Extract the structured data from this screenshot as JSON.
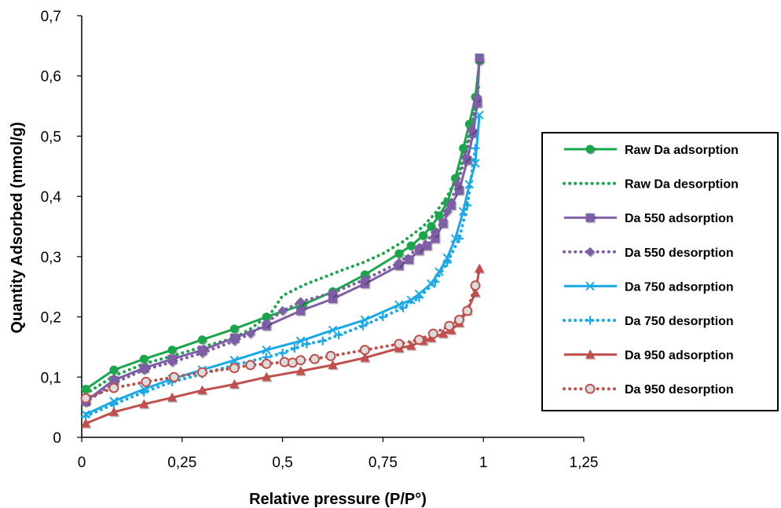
{
  "chart_data": {
    "type": "line",
    "title": "",
    "xlabel": "Relative pressure (P/P°)",
    "ylabel": "Quantity Adsorbed (mmol/g)",
    "xlim": [
      0,
      1.25
    ],
    "ylim": [
      0,
      0.7
    ],
    "x_ticks": [
      0,
      0.25,
      0.5,
      0.75,
      1,
      1.25
    ],
    "x_tick_labels": [
      "0",
      "0,25",
      "0,5",
      "0,75",
      "1",
      "1,25"
    ],
    "y_ticks": [
      0,
      0.1,
      0.2,
      0.3,
      0.4,
      0.5,
      0.6,
      0.7
    ],
    "y_tick_labels": [
      "0",
      "0,1",
      "0,2",
      "0,3",
      "0,4",
      "0,5",
      "0,6",
      "0,7"
    ],
    "grid": false,
    "legend_position": "right",
    "series": [
      {
        "name": "Raw Da adsorption",
        "color": "#1aa64b",
        "dash": "solid",
        "marker": "circle",
        "x": [
          0.01,
          0.08,
          0.155,
          0.225,
          0.3,
          0.38,
          0.46,
          0.55,
          0.625,
          0.705,
          0.79,
          0.82,
          0.85,
          0.87,
          0.89,
          0.91,
          0.93,
          0.95,
          0.965,
          0.98,
          0.99
        ],
        "y": [
          0.08,
          0.112,
          0.13,
          0.145,
          0.162,
          0.18,
          0.2,
          0.22,
          0.242,
          0.27,
          0.305,
          0.318,
          0.335,
          0.35,
          0.368,
          0.39,
          0.43,
          0.48,
          0.52,
          0.565,
          0.625
        ]
      },
      {
        "name": "Raw Da desorption",
        "color": "#1aa64b",
        "dash": "dotted",
        "marker": "none",
        "x": [
          0.01,
          0.08,
          0.155,
          0.23,
          0.3,
          0.38,
          0.42,
          0.47,
          0.5,
          0.53,
          0.56,
          0.6,
          0.65,
          0.7,
          0.75,
          0.8,
          0.85,
          0.88,
          0.91,
          0.94,
          0.96,
          0.975,
          0.99
        ],
        "y": [
          0.072,
          0.102,
          0.122,
          0.136,
          0.15,
          0.165,
          0.18,
          0.205,
          0.235,
          0.245,
          0.255,
          0.265,
          0.278,
          0.29,
          0.305,
          0.325,
          0.35,
          0.372,
          0.4,
          0.44,
          0.49,
          0.53,
          0.59
        ]
      },
      {
        "name": "Da 550 adsorption",
        "color": "#7e5ea6",
        "dash": "solid",
        "marker": "square",
        "x": [
          0.01,
          0.08,
          0.155,
          0.225,
          0.3,
          0.38,
          0.46,
          0.545,
          0.625,
          0.705,
          0.79,
          0.815,
          0.84,
          0.86,
          0.88,
          0.9,
          0.92,
          0.94,
          0.96,
          0.975,
          0.985,
          0.99
        ],
        "y": [
          0.06,
          0.095,
          0.115,
          0.13,
          0.145,
          0.165,
          0.185,
          0.21,
          0.23,
          0.255,
          0.285,
          0.295,
          0.31,
          0.318,
          0.33,
          0.355,
          0.385,
          0.41,
          0.46,
          0.505,
          0.555,
          0.63
        ]
      },
      {
        "name": "Da 550 desorption",
        "color": "#7e5ea6",
        "dash": "dotted",
        "marker": "diamond",
        "x": [
          0.01,
          0.08,
          0.155,
          0.225,
          0.3,
          0.38,
          0.42,
          0.46,
          0.5,
          0.545,
          0.625,
          0.705,
          0.79,
          0.84,
          0.88,
          0.91,
          0.935,
          0.955,
          0.97,
          0.985
        ],
        "y": [
          0.058,
          0.09,
          0.112,
          0.125,
          0.14,
          0.16,
          0.172,
          0.19,
          0.21,
          0.225,
          0.24,
          0.262,
          0.29,
          0.315,
          0.34,
          0.375,
          0.42,
          0.465,
          0.51,
          0.565
        ]
      },
      {
        "name": "Da 750 adsorption",
        "color": "#1aa9e6",
        "dash": "solid",
        "marker": "x",
        "x": [
          0.01,
          0.08,
          0.155,
          0.225,
          0.3,
          0.38,
          0.46,
          0.545,
          0.625,
          0.705,
          0.79,
          0.82,
          0.84,
          0.87,
          0.89,
          0.91,
          0.93,
          0.95,
          0.965,
          0.98,
          0.99
        ],
        "y": [
          0.038,
          0.06,
          0.08,
          0.097,
          0.112,
          0.128,
          0.145,
          0.16,
          0.178,
          0.195,
          0.22,
          0.228,
          0.238,
          0.255,
          0.275,
          0.298,
          0.33,
          0.375,
          0.42,
          0.455,
          0.535
        ]
      },
      {
        "name": "Da 750 desorption",
        "color": "#1aa9e6",
        "dash": "dotted",
        "marker": "plus",
        "x": [
          0.01,
          0.08,
          0.155,
          0.225,
          0.3,
          0.38,
          0.46,
          0.5,
          0.53,
          0.56,
          0.6,
          0.64,
          0.7,
          0.75,
          0.8,
          0.84,
          0.88,
          0.91,
          0.94,
          0.96,
          0.98
        ],
        "y": [
          0.035,
          0.055,
          0.075,
          0.092,
          0.105,
          0.12,
          0.133,
          0.14,
          0.148,
          0.155,
          0.16,
          0.17,
          0.185,
          0.2,
          0.215,
          0.232,
          0.258,
          0.29,
          0.33,
          0.385,
          0.48
        ]
      },
      {
        "name": "Da 950 adsorption",
        "color": "#c0504d",
        "dash": "solid",
        "marker": "triangle",
        "x": [
          0.01,
          0.08,
          0.155,
          0.225,
          0.3,
          0.38,
          0.46,
          0.545,
          0.625,
          0.705,
          0.79,
          0.82,
          0.85,
          0.87,
          0.9,
          0.92,
          0.94,
          0.96,
          0.98,
          0.99
        ],
        "y": [
          0.023,
          0.042,
          0.055,
          0.066,
          0.078,
          0.088,
          0.1,
          0.11,
          0.12,
          0.132,
          0.148,
          0.152,
          0.16,
          0.165,
          0.172,
          0.178,
          0.19,
          0.21,
          0.24,
          0.28
        ]
      },
      {
        "name": "Da 950 desorption",
        "color": "#c0504d",
        "dash": "dotted",
        "marker": "open-circle",
        "x": [
          0.01,
          0.08,
          0.16,
          0.23,
          0.3,
          0.38,
          0.42,
          0.46,
          0.505,
          0.525,
          0.545,
          0.58,
          0.62,
          0.705,
          0.79,
          0.84,
          0.875,
          0.915,
          0.94,
          0.96,
          0.98
        ],
        "y": [
          0.065,
          0.082,
          0.092,
          0.1,
          0.108,
          0.115,
          0.12,
          0.122,
          0.125,
          0.124,
          0.128,
          0.13,
          0.135,
          0.145,
          0.155,
          0.162,
          0.172,
          0.185,
          0.195,
          0.21,
          0.252
        ]
      }
    ]
  }
}
